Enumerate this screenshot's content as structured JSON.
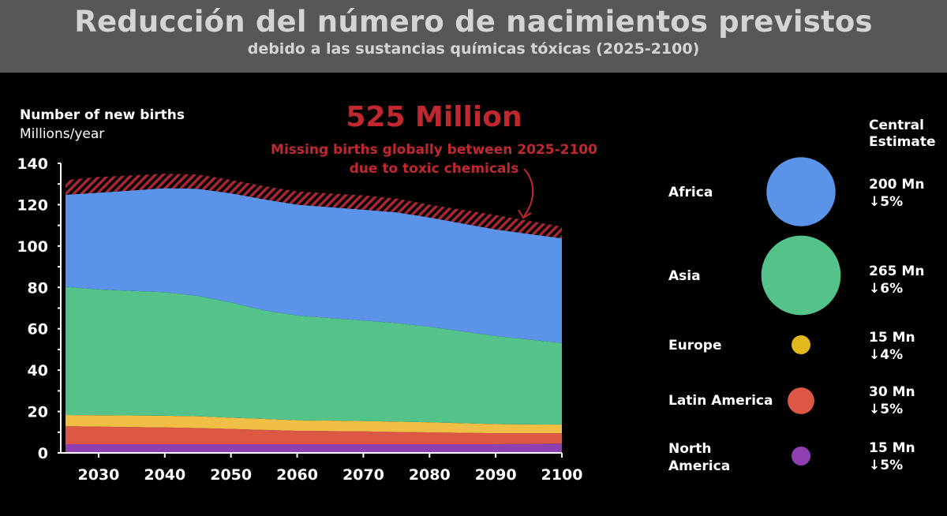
{
  "header": {
    "title": "Reducción del número de nacimientos previstos",
    "subtitle": "debido a las sustancias químicas tóxicas (2025-2100)"
  },
  "chart_data": {
    "type": "area",
    "stacked": true,
    "ylabel": "Number of new births",
    "yunit": "Millions/year",
    "ylim": [
      0,
      140
    ],
    "yticks": [
      0,
      20,
      40,
      60,
      80,
      100,
      120,
      140
    ],
    "xlim": [
      2025,
      2100
    ],
    "xticks": [
      2030,
      2040,
      2050,
      2060,
      2070,
      2080,
      2090,
      2100
    ],
    "grid": false,
    "x": [
      2025,
      2030,
      2040,
      2045,
      2050,
      2055,
      2060,
      2070,
      2075,
      2080,
      2090,
      2100
    ],
    "series": [
      {
        "name": "North America",
        "color": "#8e3fb0",
        "values": [
          4.2,
          4.2,
          4.2,
          4.2,
          4.2,
          4.2,
          4.2,
          4.2,
          4.2,
          4.2,
          4.2,
          4.5
        ]
      },
      {
        "name": "Latin America",
        "color": "#dc5744",
        "values": [
          8.7,
          8.5,
          8.1,
          7.8,
          7.4,
          6.9,
          6.5,
          6.2,
          5.9,
          5.7,
          5.3,
          5.0
        ]
      },
      {
        "name": "Europe",
        "color": "#f0bd45",
        "values": [
          5.4,
          5.5,
          5.7,
          5.7,
          5.4,
          5.3,
          5.1,
          5.0,
          5.0,
          4.9,
          4.4,
          4.2
        ]
      },
      {
        "name": "Asia",
        "color": "#55c389",
        "values": [
          62.0,
          60.8,
          59.7,
          58.2,
          55.7,
          52.5,
          50.6,
          48.6,
          47.7,
          46.2,
          42.6,
          39.4
        ]
      },
      {
        "name": "Africa",
        "color": "#5b93e8",
        "values": [
          44.5,
          46.8,
          50.3,
          51.8,
          52.8,
          53.7,
          53.6,
          53.6,
          53.5,
          52.8,
          51.5,
          50.6
        ]
      },
      {
        "name": "Missing births",
        "color": "#a8262f",
        "hatched": true,
        "values": [
          7.1,
          7.6,
          7.0,
          6.9,
          6.5,
          6.4,
          6.4,
          6.9,
          6.7,
          6.2,
          7.0,
          5.7
        ]
      }
    ],
    "annotation": {
      "headline": "525 Million",
      "text_line1": "Missing births globally between 2025-2100",
      "text_line2": "due to toxic chemicals"
    }
  },
  "legend": {
    "header_line1": "Central",
    "header_line2": "Estimate",
    "items": [
      {
        "label": "Africa",
        "color": "#5b93e8",
        "estimate": "200 Mn",
        "change": "↓5%",
        "value_mn": 200
      },
      {
        "label": "Asia",
        "color": "#55c389",
        "estimate": "265 Mn",
        "change": "↓6%",
        "value_mn": 265
      },
      {
        "label": "Europe",
        "color": "#e3b81c",
        "estimate": "15 Mn",
        "change": "↓4%",
        "value_mn": 15
      },
      {
        "label": "Latin America",
        "color": "#dc5744",
        "estimate": "30 Mn",
        "change": "↓5%",
        "value_mn": 30
      },
      {
        "label_line1": "North",
        "label_line2": "America",
        "color": "#8e3fb0",
        "estimate": "15 Mn",
        "change": "↓5%",
        "value_mn": 15
      }
    ]
  }
}
